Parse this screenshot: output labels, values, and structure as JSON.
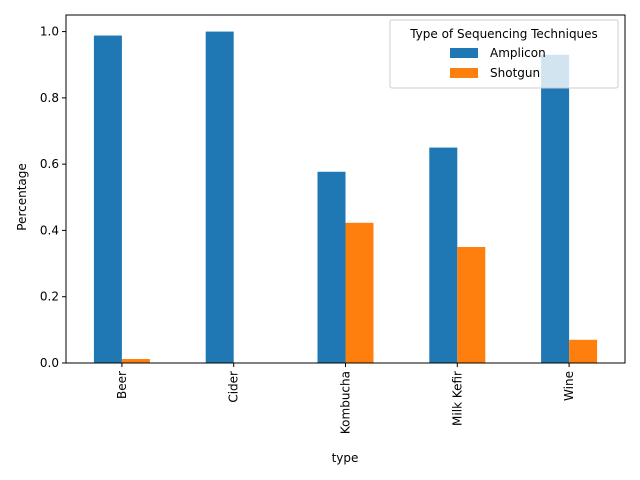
{
  "chart_data": {
    "type": "bar",
    "categories": [
      "Beer",
      "Cider",
      "Kombucha",
      "Milk Kefir",
      "Wine"
    ],
    "series": [
      {
        "name": "Amplicon",
        "values": [
          0.988,
          1.0,
          0.577,
          0.65,
          0.93
        ],
        "color": "#1f77b4"
      },
      {
        "name": "Shotgun",
        "values": [
          0.012,
          0.0,
          0.423,
          0.35,
          0.07
        ],
        "color": "#ff7f0e"
      }
    ],
    "title": "",
    "xlabel": "type",
    "ylabel": "Percentage",
    "ylim": [
      0,
      1.05
    ],
    "yticks": [
      "0.0",
      "0.2",
      "0.4",
      "0.6",
      "0.8",
      "1.0"
    ],
    "grid": false,
    "legend": {
      "title": "Type of Sequencing Techniques",
      "placement": "top-right"
    }
  }
}
